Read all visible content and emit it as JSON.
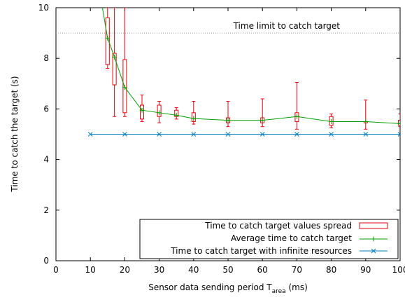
{
  "chart_data": {
    "type": "line",
    "xlabel": {
      "main": "Sensor data sending period T",
      "subscript": "area",
      "unit": " (ms)"
    },
    "ylabel": "Time to catch the target (s)",
    "xlim": [
      0,
      100
    ],
    "ylim": [
      0,
      10
    ],
    "xticks": [
      0,
      10,
      20,
      30,
      40,
      50,
      60,
      70,
      80,
      90,
      100
    ],
    "yticks": [
      0,
      2,
      4,
      6,
      8,
      10
    ],
    "grid": false,
    "legend_position": "bottom-right",
    "annotations": [
      {
        "text": "Time limit to catch target",
        "y": 9,
        "style": "dotted-hline"
      }
    ],
    "series": [
      {
        "name": "Time to catch target values spread",
        "kind": "boxplot",
        "color": "#e8000b",
        "x": [
          15,
          17,
          20,
          25,
          30,
          35,
          40,
          50,
          60,
          70,
          80,
          90,
          100
        ],
        "min": [
          7.6,
          5.7,
          5.7,
          5.5,
          5.45,
          5.6,
          5.4,
          5.3,
          5.3,
          5.2,
          5.25,
          5.2,
          5.3
        ],
        "q1": [
          7.75,
          6.95,
          5.85,
          5.6,
          5.7,
          5.7,
          5.5,
          5.45,
          5.45,
          5.5,
          5.35,
          5.45,
          5.35
        ],
        "q3": [
          9.6,
          8.2,
          7.95,
          6.15,
          6.15,
          5.95,
          5.85,
          5.65,
          5.65,
          5.85,
          5.7,
          5.5,
          5.55
        ],
        "max": [
          10,
          10,
          10,
          6.55,
          6.3,
          6.05,
          6.3,
          6.3,
          6.4,
          7.05,
          5.8,
          6.35,
          5.8
        ]
      },
      {
        "name": "Average time to catch target",
        "kind": "line",
        "color": "#00a000",
        "marker": "plus",
        "x": [
          15,
          17,
          20,
          25,
          30,
          35,
          40,
          50,
          60,
          70,
          80,
          90,
          100
        ],
        "y": [
          8.8,
          8.05,
          6.85,
          5.95,
          5.85,
          5.75,
          5.62,
          5.55,
          5.55,
          5.7,
          5.5,
          5.5,
          5.42
        ],
        "x_extra_start": [
          13.5
        ],
        "y_extra_start": [
          10
        ]
      },
      {
        "name": "Time to catch target with infinite resources",
        "kind": "line",
        "color": "#0080c0",
        "marker": "x",
        "x": [
          10,
          20,
          30,
          40,
          50,
          60,
          70,
          80,
          90,
          100
        ],
        "y": [
          5,
          5,
          5,
          5,
          5,
          5,
          5,
          5,
          5,
          5
        ]
      }
    ]
  }
}
